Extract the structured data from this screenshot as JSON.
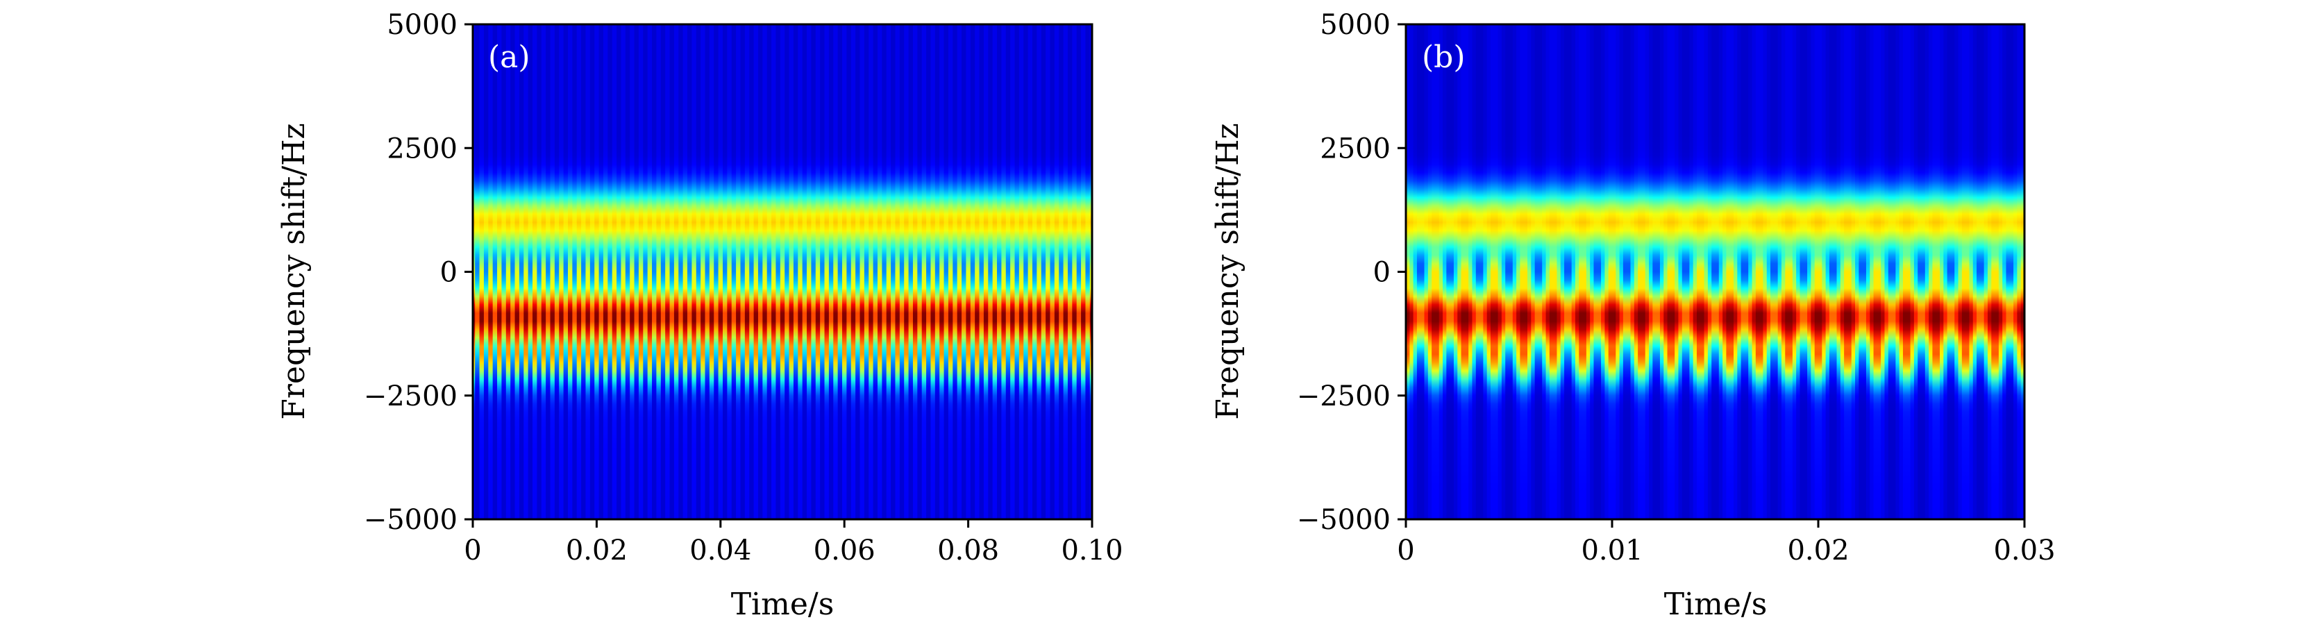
{
  "chart_data": [
    {
      "type": "heatmap",
      "panel_label": "(a)",
      "xlabel": "Time/s",
      "ylabel": "Frequency shift/Hz",
      "xlim": [
        0,
        0.1
      ],
      "ylim": [
        -5000,
        5000
      ],
      "x_ticks": [
        0,
        0.02,
        0.04,
        0.06,
        0.08,
        0.1
      ],
      "x_tick_labels": [
        "0",
        "0.02",
        "0.04",
        "0.06",
        "0.08",
        "0.10"
      ],
      "y_ticks": [
        -5000,
        -2500,
        0,
        2500,
        5000
      ],
      "y_tick_labels": [
        "−5000",
        "−2500",
        "0",
        "2500",
        "5000"
      ],
      "colormap": "jet",
      "modulation_periods_visible": 70,
      "bands": [
        {
          "center_hz": -900,
          "width_hz": 420,
          "intensity": 1.0
        },
        {
          "center_hz": -1800,
          "width_hz": 350,
          "intensity": 0.55
        },
        {
          "center_hz": 1000,
          "width_hz": 450,
          "intensity": 0.62
        },
        {
          "center_hz": 0,
          "width_hz": 250,
          "intensity": 0.45
        }
      ]
    },
    {
      "type": "heatmap",
      "panel_label": "(b)",
      "xlabel": "Time/s",
      "ylabel": "Frequency shift/Hz",
      "xlim": [
        0,
        0.03
      ],
      "ylim": [
        -5000,
        5000
      ],
      "x_ticks": [
        0,
        0.01,
        0.02,
        0.03
      ],
      "x_tick_labels": [
        "0",
        "0.01",
        "0.02",
        "0.03"
      ],
      "y_ticks": [
        -5000,
        -2500,
        0,
        2500,
        5000
      ],
      "y_tick_labels": [
        "−5000",
        "−2500",
        "0",
        "2500",
        "5000"
      ],
      "colormap": "jet",
      "modulation_periods_visible": 21,
      "bands": [
        {
          "center_hz": -900,
          "width_hz": 420,
          "intensity": 1.0
        },
        {
          "center_hz": -1800,
          "width_hz": 350,
          "intensity": 0.55
        },
        {
          "center_hz": 1000,
          "width_hz": 450,
          "intensity": 0.62
        },
        {
          "center_hz": 0,
          "width_hz": 250,
          "intensity": 0.45
        }
      ]
    }
  ]
}
